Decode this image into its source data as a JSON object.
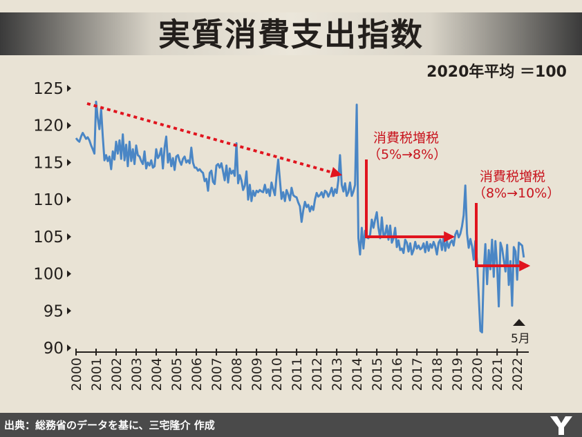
{
  "title": "実質消費支出指数",
  "unit_note": "2020年平均 ＝100",
  "source": "出典：総務省のデータを基に、三宅隆介 作成",
  "annotations": {
    "tax1_line1": "消費税増税",
    "tax1_line2": "（5%→8%）",
    "tax2_line1": "消費税増税",
    "tax2_line2": "（8%→10%）",
    "latest": "5月"
  },
  "colors": {
    "line": "#4a86c5",
    "arrow": "#e0141e",
    "text_dark": "#231f1c",
    "annotation": "#c8141e"
  },
  "chart_data": {
    "type": "line",
    "x_ticks": [
      "2000",
      "2001",
      "2002",
      "2003",
      "2004",
      "2005",
      "2006",
      "2007",
      "2008",
      "2009",
      "2010",
      "2011",
      "2012",
      "2013",
      "2014",
      "2015",
      "2016",
      "2017",
      "2018",
      "2019",
      "2020",
      "2021",
      "2022"
    ],
    "y_ticks": [
      90,
      95,
      100,
      105,
      110,
      115,
      120,
      125
    ],
    "ylim": [
      90,
      125
    ],
    "xlim": [
      2000,
      2022.5
    ],
    "series": [
      {
        "x_start": 2000,
        "step": 0.0833333,
        "values": [
          118.3,
          118.0,
          117.8,
          118.5,
          119.0,
          118.6,
          118.2,
          118.4,
          118.0,
          117.3,
          116.8,
          116.2,
          123.2,
          121.0,
          119.5,
          122.2,
          118.5,
          115.3,
          116.0,
          115.2,
          115.8,
          114.1,
          116.5,
          115.4,
          117.8,
          116.2,
          118.0,
          115.5,
          118.8,
          115.3,
          117.4,
          114.5,
          117.8,
          115.2,
          116.8,
          114.8,
          117.3,
          116.0,
          115.8,
          115.2,
          114.8,
          116.5,
          114.2,
          115.0,
          114.6,
          115.3,
          114.3,
          114.5,
          116.8,
          115.6,
          116.0,
          116.9,
          114.2,
          117.0,
          118.5,
          115.0,
          116.2,
          114.5,
          115.6,
          114.0,
          115.8,
          116.0,
          115.2,
          114.7,
          115.5,
          115.8,
          115.0,
          115.3,
          114.9,
          117.0,
          115.0,
          114.3,
          114.3,
          113.9,
          114.1,
          113.8,
          113.6,
          112.5,
          112.8,
          111.2,
          113.6,
          113.9,
          112.4,
          112.1,
          114.6,
          114.8,
          114.3,
          114.9,
          113.8,
          112.6,
          114.6,
          112.3,
          114.2,
          113.5,
          113.9,
          113.2,
          117.6,
          112.2,
          113.3,
          112.6,
          111.3,
          111.9,
          113.8,
          110.0,
          112.0,
          109.8,
          111.2,
          110.5,
          111.2,
          111.0,
          111.3,
          111.1,
          111.0,
          112.0,
          110.9,
          111.4,
          110.5,
          112.3,
          111.4,
          110.6,
          113.2,
          115.4,
          112.7,
          110.1,
          111.0,
          109.8,
          111.3,
          110.7,
          109.9,
          111.6,
          110.6,
          110.4,
          110.3,
          109.6,
          109.1,
          107.0,
          108.6,
          109.7,
          109.0,
          109.3,
          108.4,
          109.1,
          108.6,
          110.0,
          110.9,
          110.4,
          110.6,
          111.0,
          110.3,
          111.2,
          111.0,
          110.4,
          110.9,
          111.6,
          110.5,
          111.4,
          110.9,
          112.6,
          116.0,
          112.0,
          111.1,
          112.2,
          110.5,
          111.0,
          112.3,
          110.5,
          111.1,
          112.0,
          122.8,
          104.8,
          102.6,
          106.2,
          103.4,
          105.8,
          104.9,
          104.8,
          105.3,
          107.3,
          106.2,
          107.3,
          108.3,
          106.2,
          104.8,
          107.6,
          105.1,
          105.3,
          106.5,
          104.6,
          106.5,
          104.2,
          104.8,
          106.2,
          103.6,
          104.5,
          103.2,
          103.4,
          102.8,
          104.6,
          104.2,
          103.0,
          104.1,
          102.6,
          103.2,
          104.3,
          103.4,
          103.8,
          103.3,
          103.5,
          104.1,
          102.9,
          104.3,
          103.1,
          104.0,
          103.5,
          104.3,
          103.7,
          102.6,
          104.2,
          104.6,
          103.2,
          104.9,
          103.1,
          104.4,
          103.5,
          104.2,
          104.5,
          103.8,
          105.3,
          105.8,
          104.9,
          105.4,
          106.4,
          107.9,
          111.9,
          105.4,
          103.5,
          104.7,
          103.7,
          101.9,
          104.4,
          101.5,
          97.0,
          92.3,
          92.1,
          100.2,
          104.0,
          98.6,
          103.2,
          100.6,
          104.6,
          99.6,
          104.4,
          101.1,
          95.6,
          104.2,
          103.4,
          101.9,
          100.3,
          103.9,
          98.5,
          101.7,
          95.7,
          103.6,
          103.0,
          99.2,
          104.2,
          104.0,
          103.8,
          102.2
        ]
      }
    ]
  }
}
